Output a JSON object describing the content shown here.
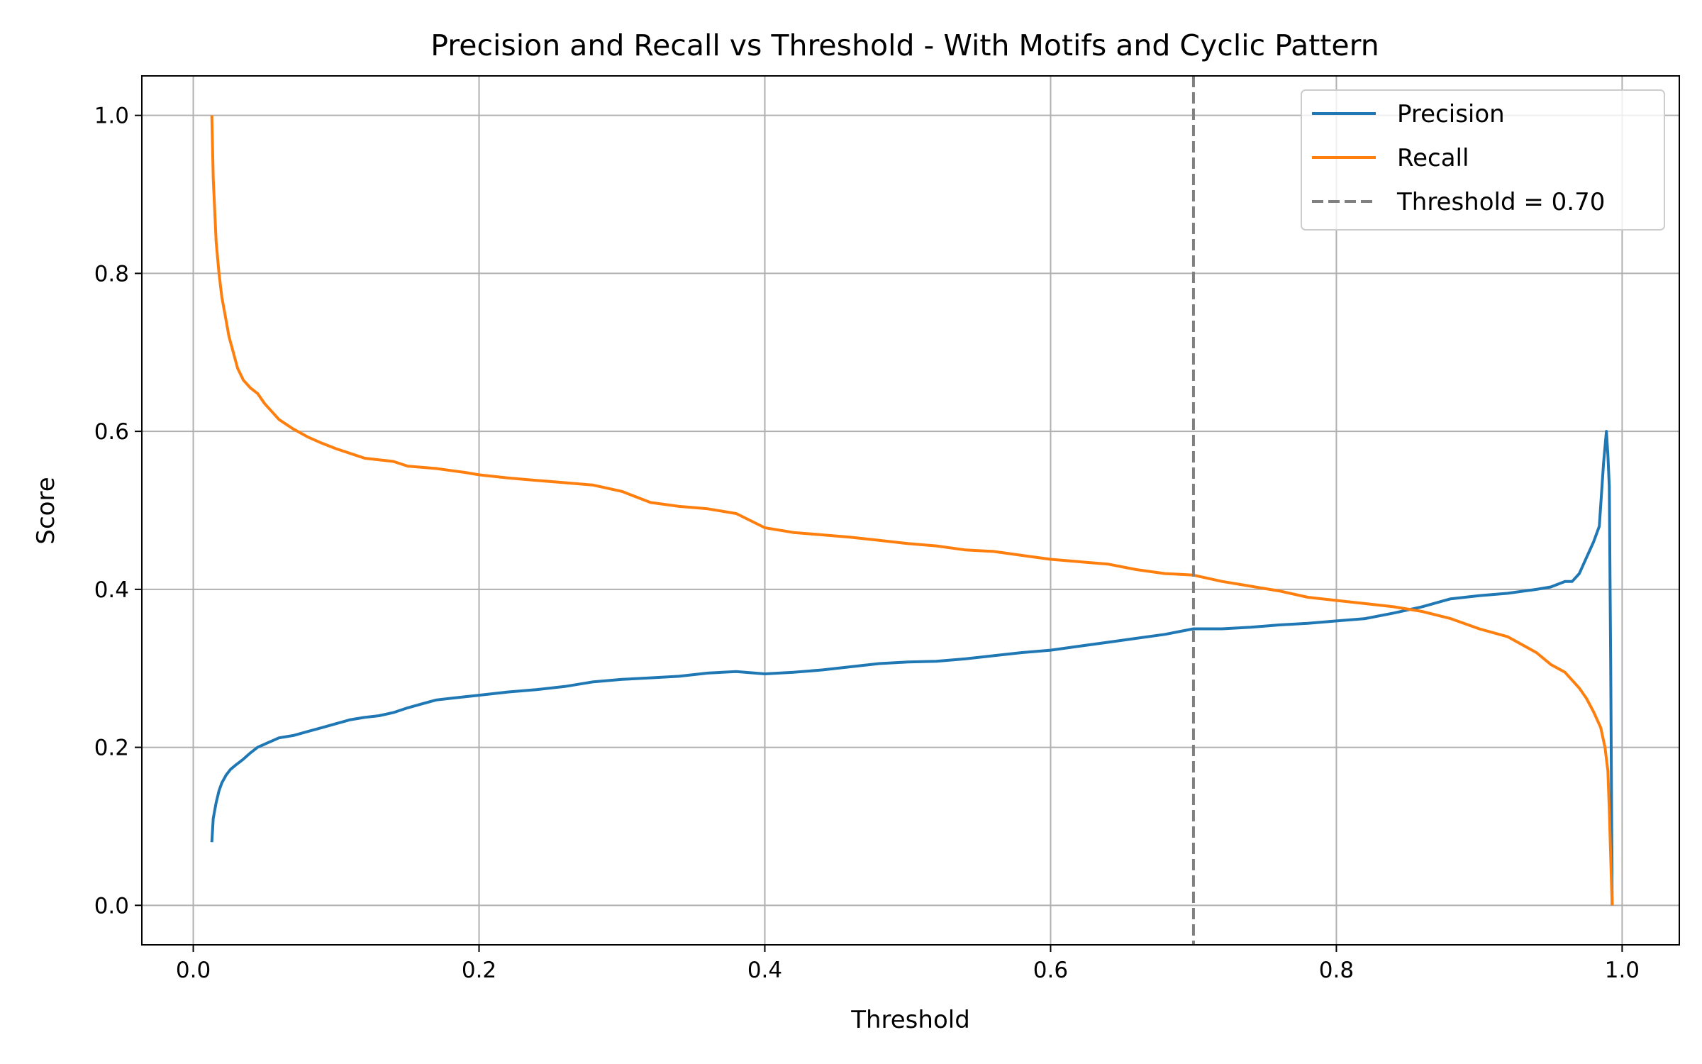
{
  "chart_data": {
    "type": "line",
    "title": "Precision and Recall vs Threshold -  With Motifs and Cyclic Pattern",
    "xlabel": "Threshold",
    "ylabel": "Score",
    "xlim": [
      -0.036,
      1.04
    ],
    "ylim": [
      -0.05,
      1.05
    ],
    "xticks": [
      0.0,
      0.2,
      0.4,
      0.6,
      0.8,
      1.0
    ],
    "xtick_labels": [
      "0.0",
      "0.2",
      "0.4",
      "0.6",
      "0.8",
      "1.0"
    ],
    "yticks": [
      0.0,
      0.2,
      0.4,
      0.6,
      0.8,
      1.0
    ],
    "ytick_labels": [
      "0.0",
      "0.2",
      "0.4",
      "0.6",
      "0.8",
      "1.0"
    ],
    "grid": true,
    "legend_position": "top-right",
    "series": [
      {
        "name": "Precision",
        "color": "#1f77b4",
        "x": [
          0.013,
          0.014,
          0.016,
          0.018,
          0.02,
          0.023,
          0.026,
          0.03,
          0.035,
          0.04,
          0.045,
          0.05,
          0.06,
          0.07,
          0.08,
          0.09,
          0.1,
          0.11,
          0.12,
          0.13,
          0.14,
          0.15,
          0.16,
          0.17,
          0.18,
          0.2,
          0.22,
          0.24,
          0.26,
          0.28,
          0.3,
          0.32,
          0.34,
          0.36,
          0.38,
          0.4,
          0.42,
          0.44,
          0.46,
          0.48,
          0.5,
          0.52,
          0.54,
          0.56,
          0.58,
          0.6,
          0.62,
          0.64,
          0.66,
          0.68,
          0.7,
          0.72,
          0.74,
          0.76,
          0.78,
          0.8,
          0.82,
          0.84,
          0.86,
          0.88,
          0.9,
          0.92,
          0.94,
          0.95,
          0.96,
          0.965,
          0.97,
          0.975,
          0.98,
          0.984,
          0.987,
          0.989,
          0.99,
          0.991,
          0.992,
          0.993
        ],
        "values": [
          0.08,
          0.11,
          0.13,
          0.145,
          0.155,
          0.165,
          0.172,
          0.178,
          0.185,
          0.193,
          0.2,
          0.204,
          0.212,
          0.215,
          0.22,
          0.225,
          0.23,
          0.235,
          0.238,
          0.24,
          0.244,
          0.25,
          0.255,
          0.26,
          0.262,
          0.266,
          0.27,
          0.273,
          0.277,
          0.283,
          0.286,
          0.288,
          0.29,
          0.294,
          0.296,
          0.293,
          0.295,
          0.298,
          0.302,
          0.306,
          0.308,
          0.309,
          0.312,
          0.316,
          0.32,
          0.323,
          0.328,
          0.333,
          0.338,
          0.343,
          0.35,
          0.35,
          0.352,
          0.355,
          0.357,
          0.36,
          0.363,
          0.37,
          0.378,
          0.388,
          0.392,
          0.395,
          0.4,
          0.403,
          0.41,
          0.41,
          0.42,
          0.44,
          0.46,
          0.48,
          0.56,
          0.6,
          0.57,
          0.53,
          0.3,
          0.0
        ]
      },
      {
        "name": "Recall",
        "color": "#ff7f0e",
        "x": [
          0.013,
          0.014,
          0.016,
          0.018,
          0.02,
          0.022,
          0.025,
          0.028,
          0.031,
          0.035,
          0.04,
          0.045,
          0.05,
          0.055,
          0.06,
          0.07,
          0.08,
          0.09,
          0.1,
          0.11,
          0.12,
          0.14,
          0.15,
          0.17,
          0.19,
          0.2,
          0.22,
          0.24,
          0.26,
          0.28,
          0.3,
          0.32,
          0.34,
          0.36,
          0.38,
          0.4,
          0.42,
          0.44,
          0.46,
          0.48,
          0.5,
          0.52,
          0.54,
          0.56,
          0.58,
          0.6,
          0.62,
          0.64,
          0.66,
          0.68,
          0.7,
          0.72,
          0.74,
          0.76,
          0.78,
          0.8,
          0.82,
          0.84,
          0.86,
          0.88,
          0.9,
          0.92,
          0.94,
          0.95,
          0.96,
          0.97,
          0.975,
          0.98,
          0.985,
          0.988,
          0.99,
          0.991,
          0.992,
          0.993
        ],
        "values": [
          1.0,
          0.92,
          0.84,
          0.8,
          0.77,
          0.75,
          0.72,
          0.7,
          0.68,
          0.665,
          0.655,
          0.648,
          0.635,
          0.625,
          0.615,
          0.603,
          0.593,
          0.585,
          0.578,
          0.572,
          0.566,
          0.562,
          0.556,
          0.553,
          0.548,
          0.545,
          0.541,
          0.538,
          0.535,
          0.532,
          0.524,
          0.51,
          0.505,
          0.502,
          0.496,
          0.478,
          0.472,
          0.469,
          0.466,
          0.462,
          0.458,
          0.455,
          0.45,
          0.448,
          0.443,
          0.438,
          0.435,
          0.432,
          0.425,
          0.42,
          0.418,
          0.41,
          0.404,
          0.398,
          0.39,
          0.386,
          0.382,
          0.378,
          0.372,
          0.363,
          0.35,
          0.34,
          0.32,
          0.305,
          0.295,
          0.275,
          0.262,
          0.245,
          0.225,
          0.2,
          0.17,
          0.12,
          0.06,
          0.0
        ]
      }
    ],
    "threshold_line": {
      "label": "Threshold = 0.70",
      "x": 0.7,
      "color": "#808080",
      "style": "dashed"
    }
  }
}
